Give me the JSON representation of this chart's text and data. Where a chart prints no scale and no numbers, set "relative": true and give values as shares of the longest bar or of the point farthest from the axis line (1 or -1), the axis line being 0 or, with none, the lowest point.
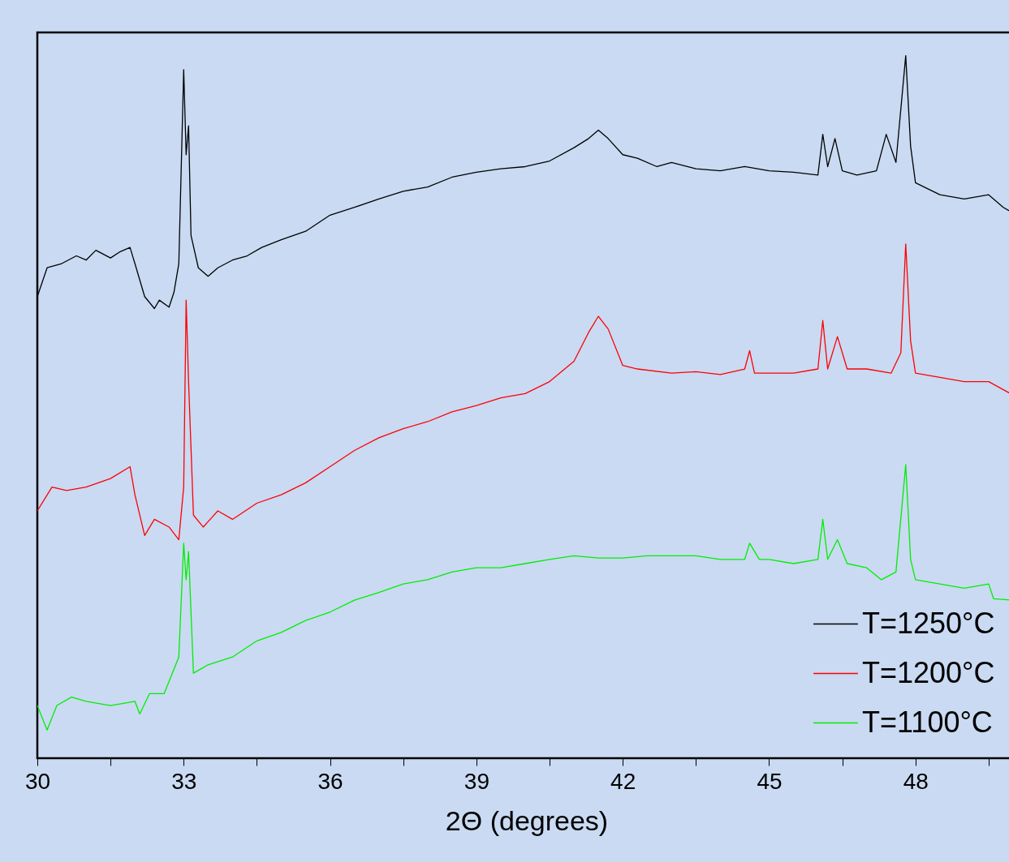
{
  "chart_data": {
    "type": "line",
    "xlabel": "2Θ (degrees)",
    "relative": true,
    "legend": "bottom right",
    "grid": false,
    "xlim": [
      30,
      50.05
    ],
    "xticks": [
      30,
      {
        "value": 31.5,
        "label": null
      },
      33,
      {
        "value": 34.5,
        "label": null
      },
      36,
      {
        "value": 37.5,
        "label": null
      },
      39,
      {
        "value": 40.5,
        "label": null
      },
      42,
      {
        "value": 43.5,
        "label": null
      },
      45,
      {
        "value": 46.5,
        "label": null
      },
      48,
      {
        "value": 49.5,
        "label": null
      }
    ],
    "series": [
      {
        "name": "T=1250°C",
        "color": "#000000",
        "x": [
          30.0,
          30.2,
          30.5,
          30.8,
          31.0,
          31.2,
          31.5,
          31.7,
          31.9,
          32.0,
          32.2,
          32.4,
          32.5,
          32.7,
          32.8,
          32.9,
          33.0,
          33.05,
          33.1,
          33.15,
          33.3,
          33.5,
          33.7,
          34.0,
          34.3,
          34.6,
          35.0,
          35.5,
          36.0,
          36.5,
          37.0,
          37.5,
          38.0,
          38.5,
          39.0,
          39.5,
          40.0,
          40.5,
          41.0,
          41.3,
          41.5,
          41.7,
          42.0,
          42.3,
          42.7,
          43.0,
          43.5,
          44.0,
          44.5,
          45.0,
          45.5,
          46.0,
          46.1,
          46.2,
          46.35,
          46.5,
          46.8,
          47.2,
          47.4,
          47.6,
          47.8,
          47.9,
          48.0,
          48.5,
          49.0,
          49.5,
          49.8,
          50.0
        ],
        "values": [
          0.657,
          0.698,
          0.704,
          0.715,
          0.709,
          0.723,
          0.712,
          0.721,
          0.727,
          0.704,
          0.657,
          0.64,
          0.652,
          0.642,
          0.663,
          0.704,
          0.98,
          0.859,
          0.9,
          0.744,
          0.698,
          0.686,
          0.698,
          0.709,
          0.715,
          0.727,
          0.738,
          0.75,
          0.773,
          0.784,
          0.796,
          0.807,
          0.813,
          0.827,
          0.834,
          0.839,
          0.842,
          0.85,
          0.869,
          0.882,
          0.894,
          0.882,
          0.859,
          0.854,
          0.842,
          0.848,
          0.839,
          0.836,
          0.842,
          0.836,
          0.834,
          0.83,
          0.888,
          0.842,
          0.882,
          0.836,
          0.83,
          0.836,
          0.888,
          0.848,
          1.0,
          0.871,
          0.819,
          0.802,
          0.796,
          0.802,
          0.784,
          0.776
        ]
      },
      {
        "name": "T=1200°C",
        "color": "#ff0000",
        "x": [
          30.0,
          30.3,
          30.6,
          31.0,
          31.5,
          31.9,
          32.0,
          32.2,
          32.4,
          32.7,
          32.9,
          33.0,
          33.05,
          33.1,
          33.2,
          33.4,
          33.7,
          34.0,
          34.5,
          35.0,
          35.5,
          36.0,
          36.5,
          37.0,
          37.5,
          38.0,
          38.5,
          39.0,
          39.5,
          40.0,
          40.5,
          41.0,
          41.3,
          41.5,
          41.7,
          42.0,
          42.3,
          43.0,
          43.5,
          44.0,
          44.5,
          44.6,
          44.7,
          45.0,
          45.5,
          46.0,
          46.1,
          46.2,
          46.4,
          46.6,
          47.0,
          47.5,
          47.7,
          47.8,
          47.9,
          48.0,
          48.5,
          49.0,
          49.5,
          50.0
        ],
        "values": [
          0.352,
          0.386,
          0.381,
          0.386,
          0.398,
          0.415,
          0.375,
          0.317,
          0.34,
          0.329,
          0.311,
          0.386,
          0.652,
          0.536,
          0.346,
          0.329,
          0.352,
          0.34,
          0.363,
          0.375,
          0.392,
          0.415,
          0.438,
          0.456,
          0.469,
          0.479,
          0.493,
          0.502,
          0.513,
          0.519,
          0.536,
          0.565,
          0.606,
          0.629,
          0.611,
          0.559,
          0.554,
          0.548,
          0.55,
          0.546,
          0.554,
          0.58,
          0.548,
          0.548,
          0.548,
          0.554,
          0.623,
          0.554,
          0.6,
          0.554,
          0.554,
          0.548,
          0.577,
          0.732,
          0.594,
          0.548,
          0.542,
          0.536,
          0.536,
          0.517
        ]
      },
      {
        "name": "T=1100°C",
        "color": "#00ee00",
        "x": [
          30.0,
          30.2,
          30.4,
          30.7,
          31.0,
          31.5,
          32.0,
          32.1,
          32.3,
          32.6,
          32.9,
          33.0,
          33.05,
          33.1,
          33.2,
          33.5,
          34.0,
          34.5,
          35.0,
          35.5,
          36.0,
          36.5,
          37.0,
          37.5,
          38.0,
          38.5,
          39.0,
          39.5,
          40.0,
          40.5,
          41.0,
          41.5,
          42.0,
          42.5,
          43.0,
          43.5,
          44.0,
          44.5,
          44.6,
          44.8,
          45.0,
          45.5,
          46.0,
          46.1,
          46.2,
          46.4,
          46.6,
          47.0,
          47.3,
          47.6,
          47.8,
          47.9,
          48.0,
          48.5,
          49.0,
          49.5,
          49.6,
          50.0
        ],
        "values": [
          0.075,
          0.04,
          0.075,
          0.087,
          0.081,
          0.075,
          0.081,
          0.063,
          0.092,
          0.092,
          0.144,
          0.306,
          0.254,
          0.294,
          0.121,
          0.133,
          0.144,
          0.167,
          0.179,
          0.196,
          0.208,
          0.225,
          0.236,
          0.248,
          0.254,
          0.265,
          0.271,
          0.271,
          0.277,
          0.283,
          0.288,
          0.285,
          0.285,
          0.288,
          0.288,
          0.288,
          0.283,
          0.283,
          0.306,
          0.283,
          0.283,
          0.277,
          0.283,
          0.34,
          0.283,
          0.311,
          0.277,
          0.271,
          0.254,
          0.265,
          0.418,
          0.283,
          0.254,
          0.248,
          0.242,
          0.248,
          0.227,
          0.225
        ]
      }
    ]
  }
}
